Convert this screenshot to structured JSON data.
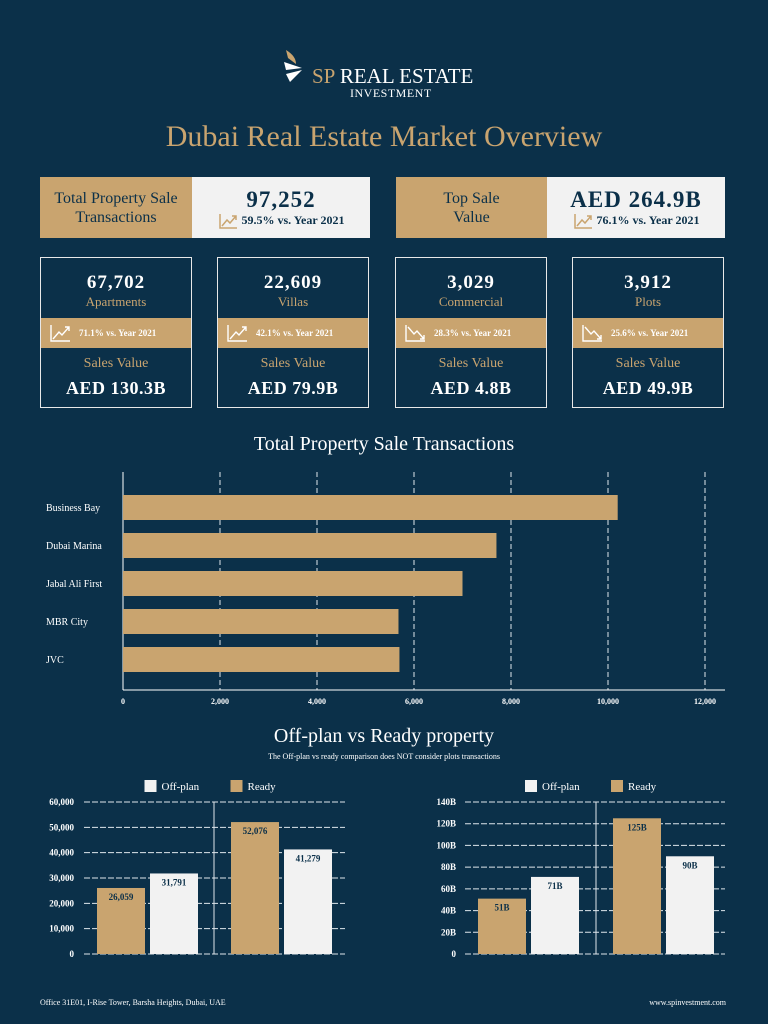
{
  "brand": {
    "name": "SP REAL ESTATE",
    "sub": "INVESTMENT"
  },
  "title": "Dubai Real Estate Market Overview",
  "summary": [
    {
      "label": "Total Property Sale Transactions",
      "value": "97,252",
      "change": "59.5% vs. Year 2021",
      "trend": "up"
    },
    {
      "label": "Top Sale Value",
      "value": "AED 264.9B",
      "change": "76.1% vs. Year 2021",
      "trend": "up"
    }
  ],
  "cards": [
    {
      "count": "67,702",
      "type": "Apartments",
      "change": "71.1% vs. Year 2021",
      "trend": "up",
      "sales_label": "Sales Value",
      "sales": "AED 130.3B"
    },
    {
      "count": "22,609",
      "type": "Villas",
      "change": "42.1% vs. Year 2021",
      "trend": "up",
      "sales_label": "Sales Value",
      "sales": "AED 79.9B"
    },
    {
      "count": "3,029",
      "type": "Commercial",
      "change": "28.3% vs. Year 2021",
      "trend": "down",
      "sales_label": "Sales Value",
      "sales": "AED 4.8B"
    },
    {
      "count": "3,912",
      "type": "Plots",
      "change": "25.6% vs. Year 2021",
      "trend": "down",
      "sales_label": "Sales Value",
      "sales": "AED 49.9B"
    }
  ],
  "colors": {
    "background": "#0b3049",
    "gold": "#c9a46f",
    "white": "#f2f2f2"
  },
  "section2": {
    "title": "Off-plan vs Ready property",
    "note": "The Off-plan vs ready comparison does NOT consider plots transactions"
  },
  "footer": {
    "address": "Office 31E01, I-Rise Tower, Barsha Heights, Dubai, UAE",
    "website": "www.spinvestment.com"
  },
  "chart_data": [
    {
      "type": "bar",
      "orientation": "horizontal",
      "title": "Total Property Sale Transactions",
      "categories": [
        "Business Bay",
        "Dubai Marina",
        "Jabal Ali First",
        "MBR City",
        "JVC"
      ],
      "values": [
        10200,
        7700,
        7000,
        5680,
        5700
      ],
      "xlim": [
        0,
        12000
      ],
      "ticks": [
        "0",
        "2,000",
        "4,000",
        "6,000",
        "8,000",
        "10,000",
        "12,000"
      ],
      "grid": "vertical dashed"
    },
    {
      "type": "bar",
      "legend": [
        "Off-plan",
        "Ready"
      ],
      "legend_position": "top",
      "groups": [
        {
          "bars": [
            {
              "series": "Ready",
              "value": 26059,
              "label": "26,059"
            },
            {
              "series": "Off-plan",
              "value": 31791,
              "label": "31,791"
            }
          ]
        },
        {
          "bars": [
            {
              "series": "Ready",
              "value": 52076,
              "label": "52,076"
            },
            {
              "series": "Off-plan",
              "value": 41279,
              "label": "41,279"
            }
          ]
        }
      ],
      "ylim": [
        0,
        60000
      ],
      "ticks": [
        "0",
        "10,000",
        "20,000",
        "30,000",
        "40,000",
        "50,000",
        "60,000"
      ],
      "grid": "horizontal dashed"
    },
    {
      "type": "bar",
      "legend": [
        "Off-plan",
        "Ready"
      ],
      "legend_position": "top",
      "groups": [
        {
          "bars": [
            {
              "series": "Ready",
              "value": 51,
              "label": "51B"
            },
            {
              "series": "Off-plan",
              "value": 71,
              "label": "71B"
            }
          ]
        },
        {
          "bars": [
            {
              "series": "Ready",
              "value": 125,
              "label": "125B"
            },
            {
              "series": "Off-plan",
              "value": 90,
              "label": "90B"
            }
          ]
        }
      ],
      "ylim": [
        0,
        140
      ],
      "ticks": [
        "0",
        "20B",
        "40B",
        "60B",
        "80B",
        "100B",
        "120B",
        "140B"
      ],
      "grid": "horizontal dashed"
    }
  ]
}
